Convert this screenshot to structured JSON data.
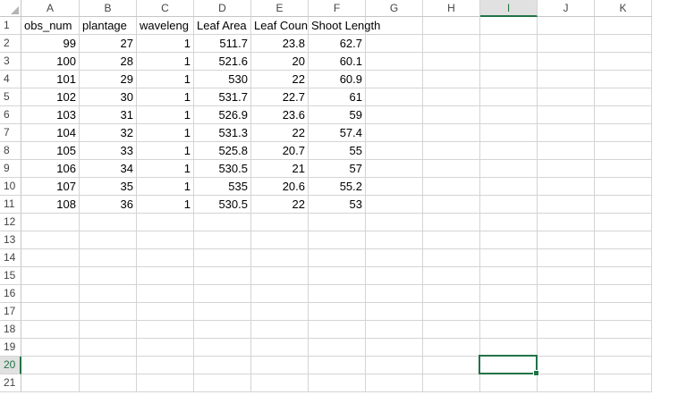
{
  "columns": [
    "A",
    "B",
    "C",
    "D",
    "E",
    "F",
    "G",
    "H",
    "I",
    "J",
    "K"
  ],
  "selected_column": "I",
  "rows": [
    "1",
    "2",
    "3",
    "4",
    "5",
    "6",
    "7",
    "8",
    "9",
    "10",
    "11",
    "12",
    "13",
    "14",
    "15",
    "16",
    "17",
    "18",
    "19",
    "20",
    "21"
  ],
  "selected_row": "20",
  "header_row": [
    "obs_num",
    "plantage",
    "waveleng",
    "Leaf Area",
    "Leaf Coun",
    "Shoot Length"
  ],
  "data_rows": [
    [
      "99",
      "27",
      "1",
      "511.7",
      "23.8",
      "62.7"
    ],
    [
      "100",
      "28",
      "1",
      "521.6",
      "20",
      "60.1"
    ],
    [
      "101",
      "29",
      "1",
      "530",
      "22",
      "60.9"
    ],
    [
      "102",
      "30",
      "1",
      "531.7",
      "22.7",
      "61"
    ],
    [
      "103",
      "31",
      "1",
      "526.9",
      "23.6",
      "59"
    ],
    [
      "104",
      "32",
      "1",
      "531.3",
      "22",
      "57.4"
    ],
    [
      "105",
      "33",
      "1",
      "525.8",
      "20.7",
      "55"
    ],
    [
      "106",
      "34",
      "1",
      "530.5",
      "21",
      "57"
    ],
    [
      "107",
      "35",
      "1",
      "535",
      "20.6",
      "55.2"
    ],
    [
      "108",
      "36",
      "1",
      "530.5",
      "22",
      "53"
    ]
  ],
  "accent_color": "#217346"
}
